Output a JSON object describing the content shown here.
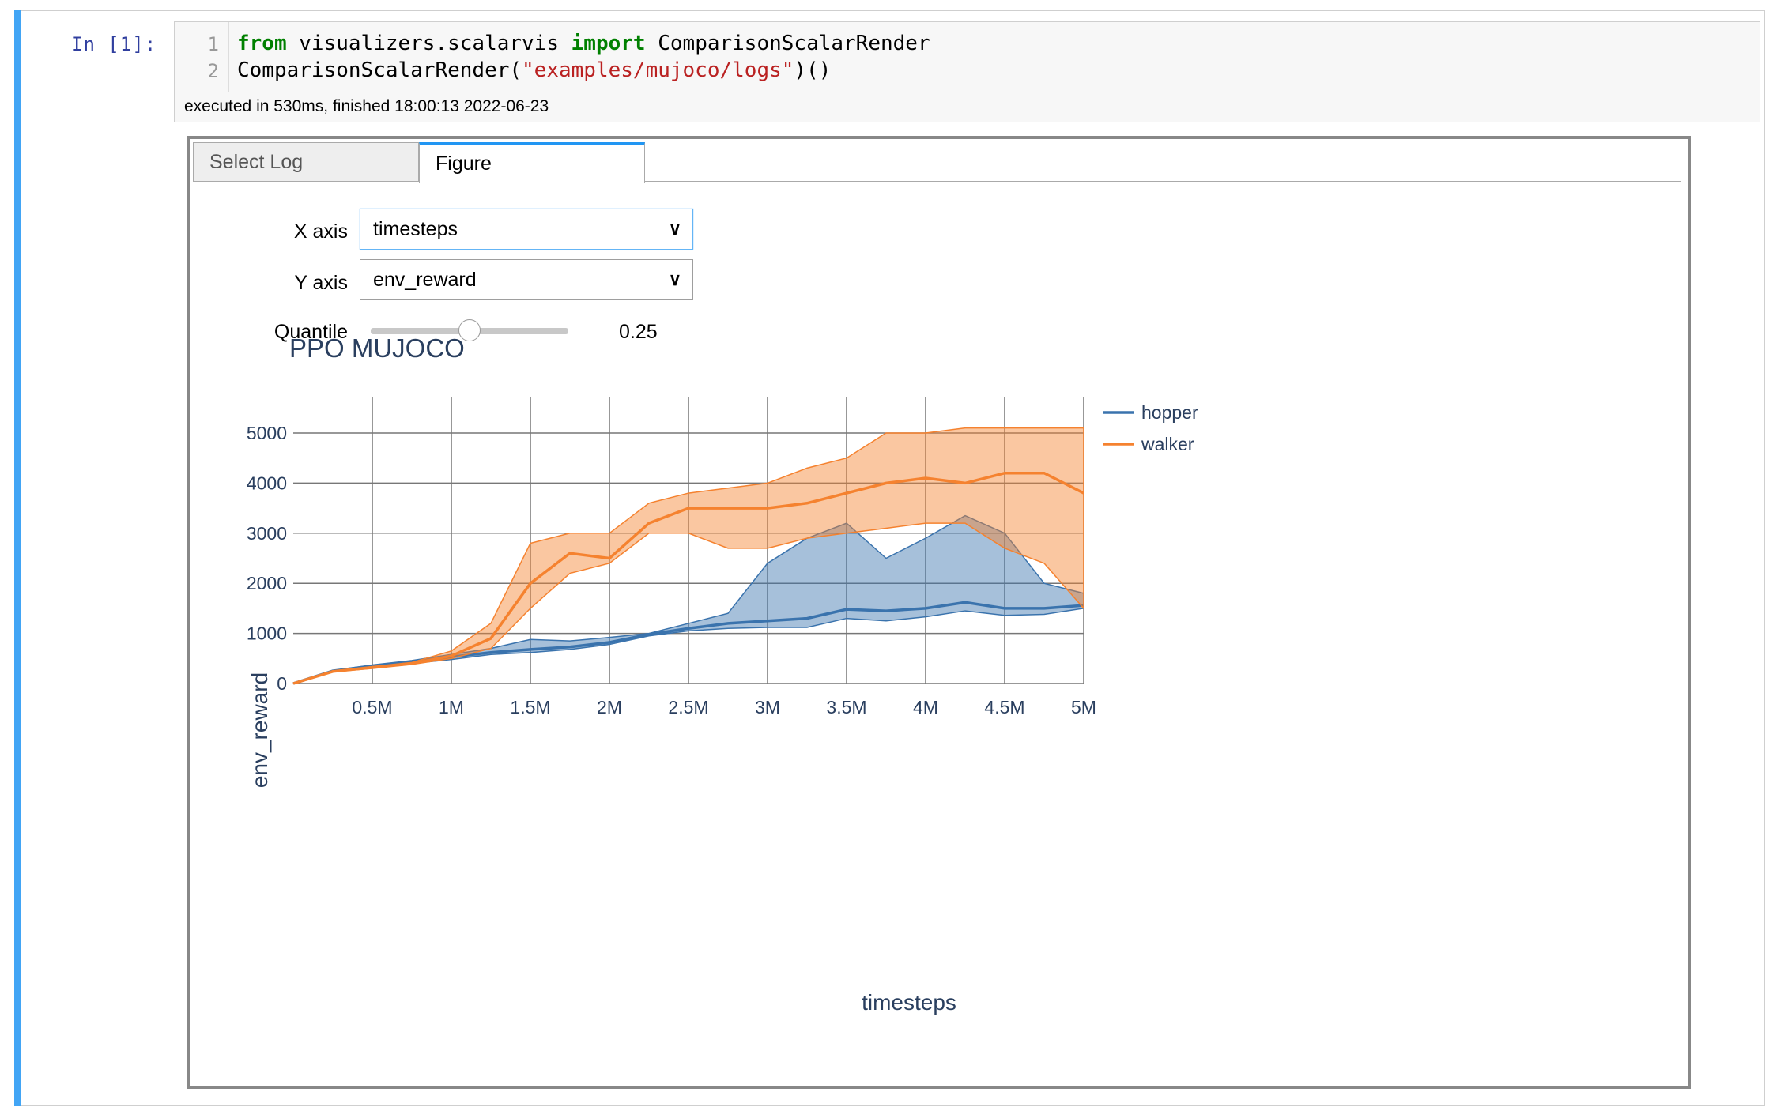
{
  "prompt": "In [1]:",
  "code": {
    "lines": [
      {
        "no": "1",
        "kw1": "from",
        "t1": " visualizers.scalarvis ",
        "kw2": "import",
        "t2": " ComparisonScalarRender"
      },
      {
        "no": "2",
        "t1": "ComparisonScalarRender(",
        "str": "\"examples/mujoco/logs\"",
        "t2": ")()"
      }
    ]
  },
  "exec_status": "executed in 530ms, finished 18:00:13 2022-06-23",
  "tabs": [
    "Select Log",
    "Figure"
  ],
  "controls": {
    "x_label": "X axis",
    "x_value": "timesteps",
    "y_label": "Y axis",
    "y_value": "env_reward",
    "quantile_label": "Quantile",
    "quantile_value": "0.25",
    "quantile_fraction": 0.25
  },
  "colors": {
    "hopper": "#3a73ad",
    "walker": "#f5822f",
    "accent": "#2196f3",
    "title": "#2a3f5f"
  },
  "chart_data": {
    "type": "line",
    "title": "PPO MUJOCO",
    "xlabel": "timesteps",
    "ylabel": "env_reward",
    "xlim": [
      0,
      5000000
    ],
    "ylim": [
      0,
      5000
    ],
    "x_ticks": [
      {
        "v": 500000,
        "label": "0.5M"
      },
      {
        "v": 1000000,
        "label": "1M"
      },
      {
        "v": 1500000,
        "label": "1.5M"
      },
      {
        "v": 2000000,
        "label": "2M"
      },
      {
        "v": 2500000,
        "label": "2.5M"
      },
      {
        "v": 3000000,
        "label": "3M"
      },
      {
        "v": 3500000,
        "label": "3.5M"
      },
      {
        "v": 4000000,
        "label": "4M"
      },
      {
        "v": 4500000,
        "label": "4.5M"
      },
      {
        "v": 5000000,
        "label": "5M"
      }
    ],
    "y_ticks": [
      {
        "v": 0,
        "label": "0"
      },
      {
        "v": 1000,
        "label": "1000"
      },
      {
        "v": 2000,
        "label": "2000"
      },
      {
        "v": 3000,
        "label": "3000"
      },
      {
        "v": 4000,
        "label": "4000"
      },
      {
        "v": 5000,
        "label": "5000"
      }
    ],
    "grid": true,
    "legend": "right",
    "x": [
      0,
      250000,
      500000,
      750000,
      1000000,
      1250000,
      1500000,
      1750000,
      2000000,
      2250000,
      2500000,
      2750000,
      3000000,
      3250000,
      3500000,
      3750000,
      4000000,
      4250000,
      4500000,
      4750000,
      5000000
    ],
    "series": [
      {
        "name": "hopper",
        "median": [
          0,
          250,
          350,
          430,
          530,
          620,
          680,
          730,
          820,
          980,
          1100,
          1200,
          1250,
          1300,
          1480,
          1450,
          1500,
          1620,
          1500,
          1500,
          1560
        ],
        "lower": [
          0,
          240,
          320,
          400,
          480,
          580,
          620,
          680,
          780,
          950,
          1050,
          1100,
          1120,
          1120,
          1300,
          1250,
          1330,
          1450,
          1360,
          1380,
          1500
        ],
        "upper": [
          0,
          260,
          370,
          460,
          580,
          700,
          880,
          850,
          920,
          1000,
          1200,
          1400,
          2400,
          2900,
          3200,
          2500,
          2900,
          3350,
          3000,
          2000,
          1800
        ]
      },
      {
        "name": "walker",
        "median": [
          0,
          240,
          320,
          400,
          550,
          900,
          2000,
          2600,
          2500,
          3200,
          3500,
          3500,
          3500,
          3600,
          3800,
          4000,
          4100,
          4000,
          4200,
          4200,
          3800
        ],
        "lower": [
          0,
          230,
          300,
          380,
          500,
          700,
          1500,
          2200,
          2400,
          3000,
          3000,
          2700,
          2700,
          2900,
          3000,
          3100,
          3200,
          3200,
          2700,
          2400,
          1500
        ],
        "upper": [
          0,
          250,
          340,
          420,
          650,
          1200,
          2800,
          3000,
          3000,
          3600,
          3800,
          3900,
          4000,
          4300,
          4500,
          5000,
          5000,
          5100,
          5100,
          5100,
          5100
        ]
      }
    ]
  }
}
